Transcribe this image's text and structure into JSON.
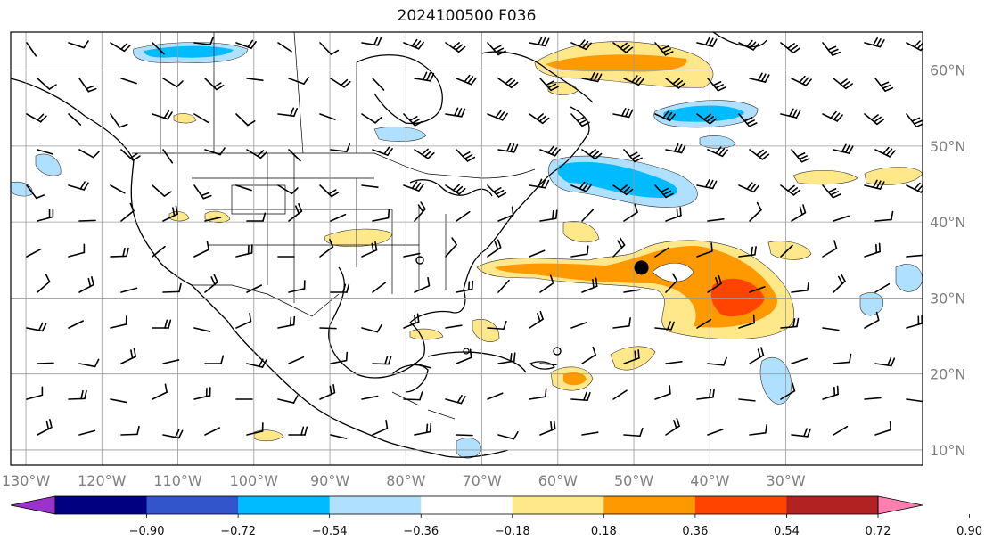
{
  "title": "2024100500 F036",
  "map": {
    "lon_range": [
      -132,
      -12
    ],
    "lat_range": [
      8,
      65
    ],
    "lon_ticks": [
      {
        "value": -130,
        "label": "130°W"
      },
      {
        "value": -120,
        "label": "120°W"
      },
      {
        "value": -110,
        "label": "110°W"
      },
      {
        "value": -100,
        "label": "100°W"
      },
      {
        "value": -90,
        "label": "90°W"
      },
      {
        "value": -80,
        "label": "80°W"
      },
      {
        "value": -70,
        "label": "70°W"
      },
      {
        "value": -60,
        "label": "60°W"
      },
      {
        "value": -50,
        "label": "50°W"
      },
      {
        "value": -40,
        "label": "40°W"
      },
      {
        "value": -30,
        "label": "30°W"
      }
    ],
    "lat_ticks": [
      {
        "value": 60,
        "label": "60°N"
      },
      {
        "value": 50,
        "label": "50°N"
      },
      {
        "value": 40,
        "label": "40°N"
      },
      {
        "value": 30,
        "label": "30°N"
      },
      {
        "value": 20,
        "label": "20°N"
      },
      {
        "value": 10,
        "label": "10°N"
      }
    ],
    "grid": true,
    "storm_center": {
      "lon": -49,
      "lat": 34
    },
    "colors": {
      "coast": "#000000",
      "grid": "#999999",
      "frame": "#000000"
    }
  },
  "colorbar": {
    "orientation": "horizontal",
    "extend": "both",
    "ticks": [
      "−0.90",
      "−0.72",
      "−0.54",
      "−0.36",
      "−0.18",
      "0.18",
      "0.36",
      "0.54",
      "0.72",
      "0.90"
    ],
    "colors": [
      "#9933cc",
      "#000080",
      "#3355cc",
      "#00bbff",
      "#b0e0ff",
      "#ffffff",
      "#ffe88a",
      "#ff9900",
      "#ff4400",
      "#b22222",
      "#ff80b0"
    ]
  }
}
